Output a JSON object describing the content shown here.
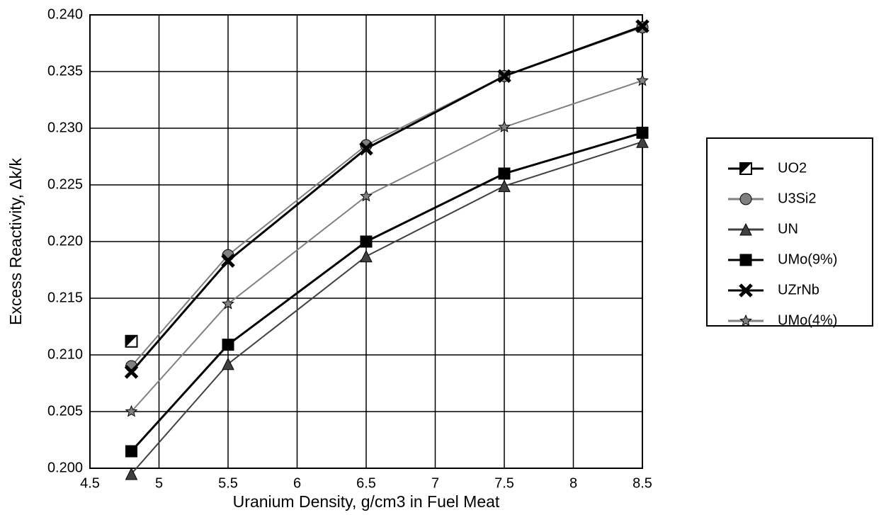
{
  "chart_data": {
    "type": "line",
    "xlabel": "Uranium Density, g/cm3 in Fuel Meat",
    "ylabel": "Excess Reactivity, Δk/k",
    "x": [
      4.8,
      5.5,
      6.5,
      7.5,
      8.5
    ],
    "series": [
      {
        "name": "UO2",
        "color": "#000000",
        "marker": "half-square",
        "values": [
          0.2112,
          null,
          null,
          null,
          null
        ]
      },
      {
        "name": "U3Si2",
        "color": "#808080",
        "marker": "circle",
        "values": [
          0.209,
          0.2188,
          0.2285,
          0.2346,
          0.2389
        ]
      },
      {
        "name": "UN",
        "color": "#404040",
        "marker": "triangle",
        "values": [
          0.1995,
          0.2092,
          0.2187,
          0.2249,
          0.2288
        ]
      },
      {
        "name": "UMo(9%)",
        "color": "#000000",
        "marker": "square",
        "values": [
          0.2015,
          0.2109,
          0.22,
          0.226,
          0.2296
        ]
      },
      {
        "name": "UZrNb",
        "color": "#000000",
        "marker": "x",
        "values": [
          0.2085,
          0.2183,
          0.2282,
          0.2346,
          0.239
        ]
      },
      {
        "name": "UMo(4%)",
        "color": "#808080",
        "marker": "star",
        "values": [
          0.205,
          0.2145,
          0.224,
          0.2301,
          0.2342
        ]
      }
    ],
    "xlim": [
      4.5,
      8.5
    ],
    "xticks": [
      4.5,
      5,
      5.5,
      6,
      6.5,
      7,
      7.5,
      8,
      8.5
    ],
    "ylim": [
      0.2,
      0.24
    ],
    "yticks": [
      {
        "value": 0.2,
        "label": "0.200"
      },
      {
        "value": 0.205,
        "label": "0.205"
      },
      {
        "value": 0.21,
        "label": "0.210"
      },
      {
        "value": 0.215,
        "label": "0.215"
      },
      {
        "value": 0.22,
        "label": "0.220"
      },
      {
        "value": 0.225,
        "label": "0.225"
      },
      {
        "value": 0.23,
        "label": "0.230"
      },
      {
        "value": 0.235,
        "label": "0.235"
      },
      {
        "value": 0.24,
        "label": "0.240"
      }
    ],
    "grid": true,
    "legend": "right"
  }
}
